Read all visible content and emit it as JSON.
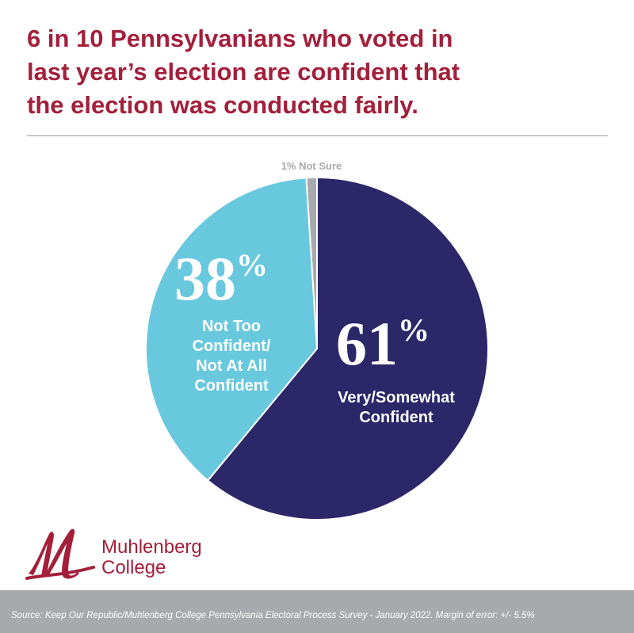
{
  "title_lines": [
    "6 in 10 Pennsylvanians who voted in",
    "last year’s election are confident that",
    "the election was conducted fairly."
  ],
  "chart_data": {
    "type": "pie",
    "title": "6 in 10 Pennsylvanians who voted in last year’s election are confident that the election was conducted fairly.",
    "slices": [
      {
        "label": "Not Sure",
        "value": 1,
        "pct": "1%",
        "color": "#a7a9ac",
        "label_lines": [
          "Not Sure"
        ]
      },
      {
        "label": "Very/Somewhat Confident",
        "value": 61,
        "pct": "61",
        "color": "#2b2769",
        "label_lines": [
          "Very/Somewhat",
          "Confident"
        ]
      },
      {
        "label": "Not Too Confident/Not At All Confident",
        "value": 38,
        "pct": "38",
        "color": "#68c8de",
        "label_lines": [
          "Not Too",
          "Confident/",
          "Not At All",
          "Confident"
        ]
      }
    ],
    "percent_sign": "%",
    "start_angle_deg": 0,
    "direction": "clockwise"
  },
  "logo": {
    "name_line1": "Muhlenberg",
    "name_line2": "College",
    "color": "#a31f3a"
  },
  "footer": {
    "source": "Source: Keep Our Republic/Muhlenberg College Pennsylvania Electoral Process Survey - January 2022. Margin of error: +/- 5.5%",
    "background": "#a7a9ac"
  }
}
